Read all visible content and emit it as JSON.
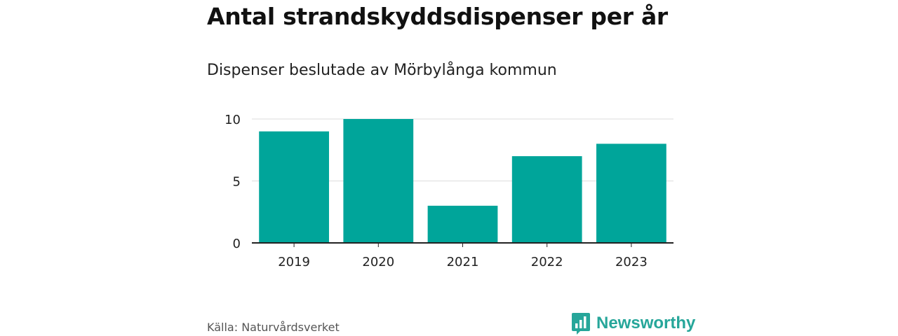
{
  "title": "Antal strandskyddsdispenser per år",
  "subtitle": "Dispenser beslutade av Mörbylånga kommun",
  "source": "Källa: Naturvårdsverket",
  "brand": {
    "name": "Newsworthy",
    "icon": "bar-chart-bubble-icon",
    "color": "#26a69a"
  },
  "colors": {
    "bar": "#00a59a",
    "grid": "#dcdcdc",
    "axis": "#222222"
  },
  "chart_data": {
    "type": "bar",
    "categories": [
      "2019",
      "2020",
      "2021",
      "2022",
      "2023"
    ],
    "values": [
      9,
      10,
      3,
      7,
      8
    ],
    "ylim": [
      0,
      10
    ],
    "yticks": [
      0,
      5,
      10
    ],
    "grid": true,
    "legend": "none",
    "xlabel": "",
    "ylabel": ""
  }
}
